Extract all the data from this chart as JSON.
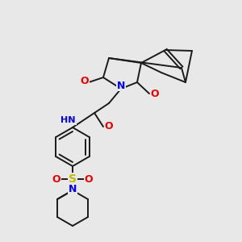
{
  "background_color": "#e8e8e8",
  "bond_color": "#1a1a1a",
  "atom_colors": {
    "N": "#0000ee",
    "O": "#ee0000",
    "S": "#bbbb00",
    "H": "#007070",
    "C": "#1a1a1a"
  },
  "font_size": 8,
  "lw": 1.4
}
